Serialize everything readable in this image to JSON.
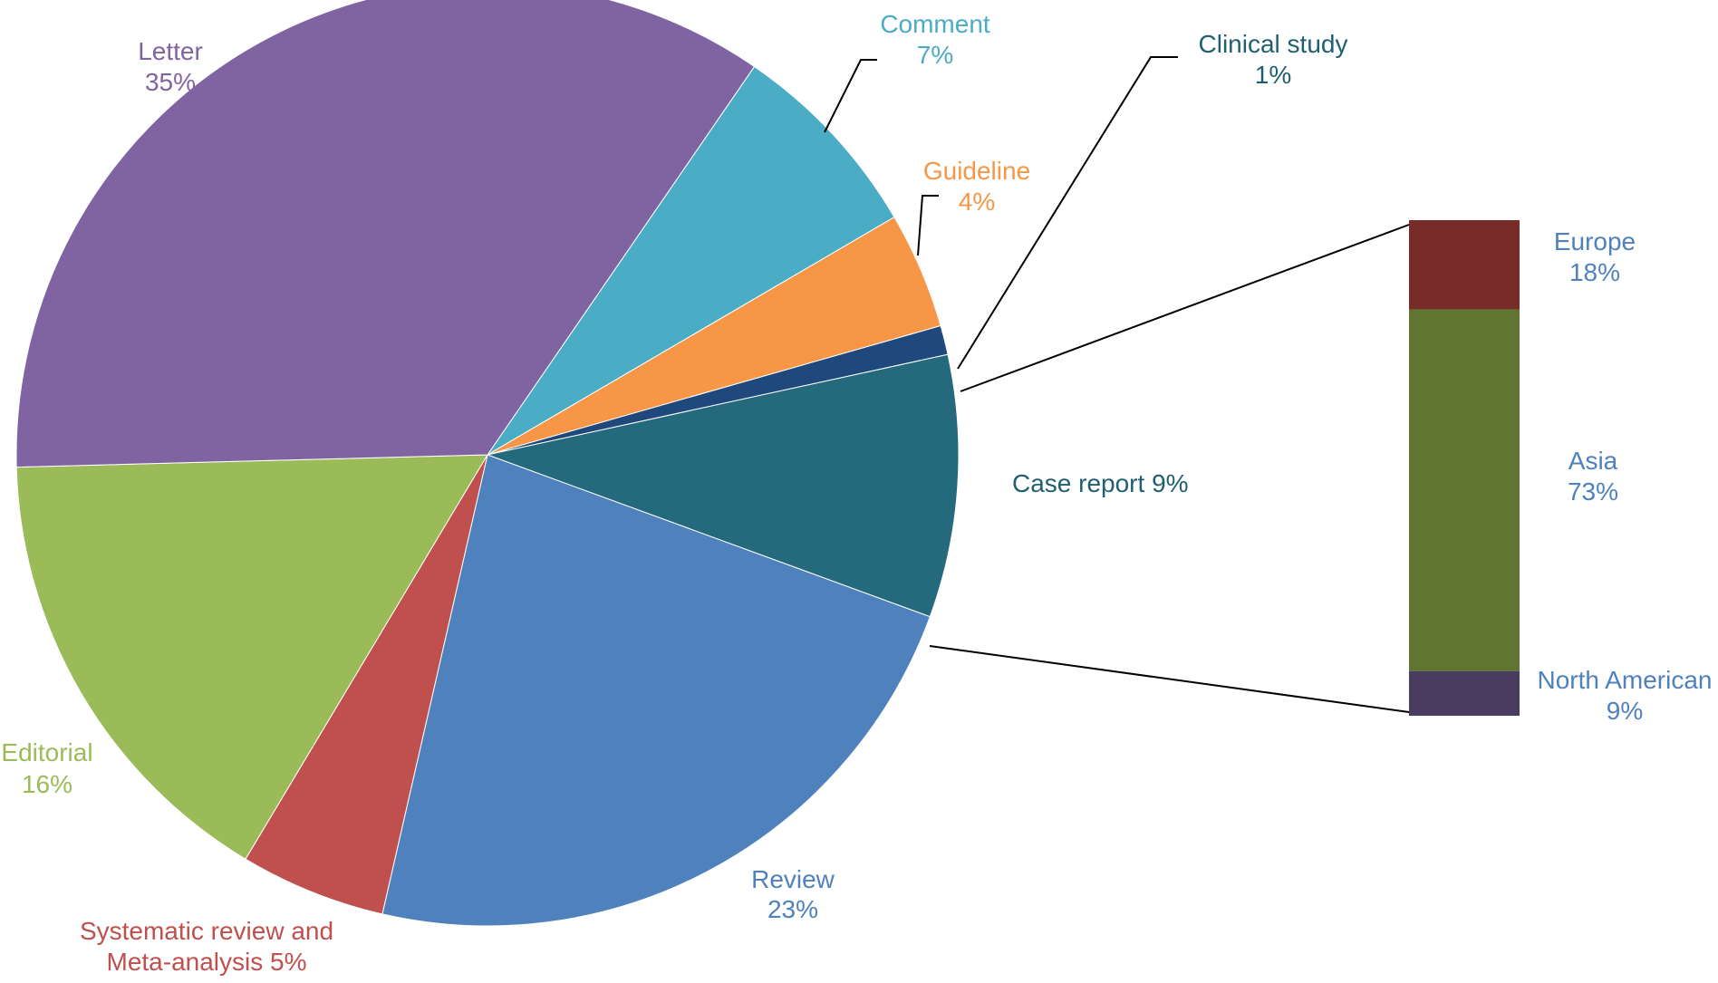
{
  "chart_data": {
    "type": "pie",
    "slices": [
      {
        "label": "Letter",
        "value_label": "35%",
        "value": 35,
        "color": "#8064a2"
      },
      {
        "label": "Comment",
        "value_label": "7%",
        "value": 7,
        "color": "#4bacc6"
      },
      {
        "label": "Guideline",
        "value_label": "4%",
        "value": 4,
        "color": "#f79646"
      },
      {
        "label": "Clinical study",
        "value_label": "1%",
        "value": 1,
        "color": "#1f497d"
      },
      {
        "label": "Case report 9%",
        "value_label": "",
        "value": 9,
        "color": "#256a7c"
      },
      {
        "label": "Review",
        "value_label": "23%",
        "value": 23,
        "color": "#4f81bd"
      },
      {
        "label": "Systematic review and",
        "label2": "Meta-analysis 5%",
        "value_label": "",
        "value": 5,
        "color": "#c0504d"
      },
      {
        "label": "Editorial",
        "value_label": "16%",
        "value": 16,
        "color": "#9bbb59"
      }
    ],
    "breakdown": {
      "source_slice": "Case report 9%",
      "segments": [
        {
          "label": "Europe",
          "value_label": "18%",
          "value": 18,
          "color": "#772c2a"
        },
        {
          "label": "Asia",
          "value_label": "73%",
          "value": 73,
          "color": "#5f7530"
        },
        {
          "label": "North American",
          "value_label": "9%",
          "value": 9,
          "color": "#4a3b60"
        }
      ]
    },
    "label_colors": {
      "Letter": "#8064a2",
      "Comment": "#4bacc6",
      "Guideline": "#f79646",
      "Clinical study": "#1f5f6f",
      "Case report": "#1f5f6f",
      "Review": "#4f81bd",
      "Systematic review": "#c0504d",
      "Editorial": "#9bbb59",
      "Breakdown": "#4f81bd",
      "Leader": "#000000"
    }
  }
}
